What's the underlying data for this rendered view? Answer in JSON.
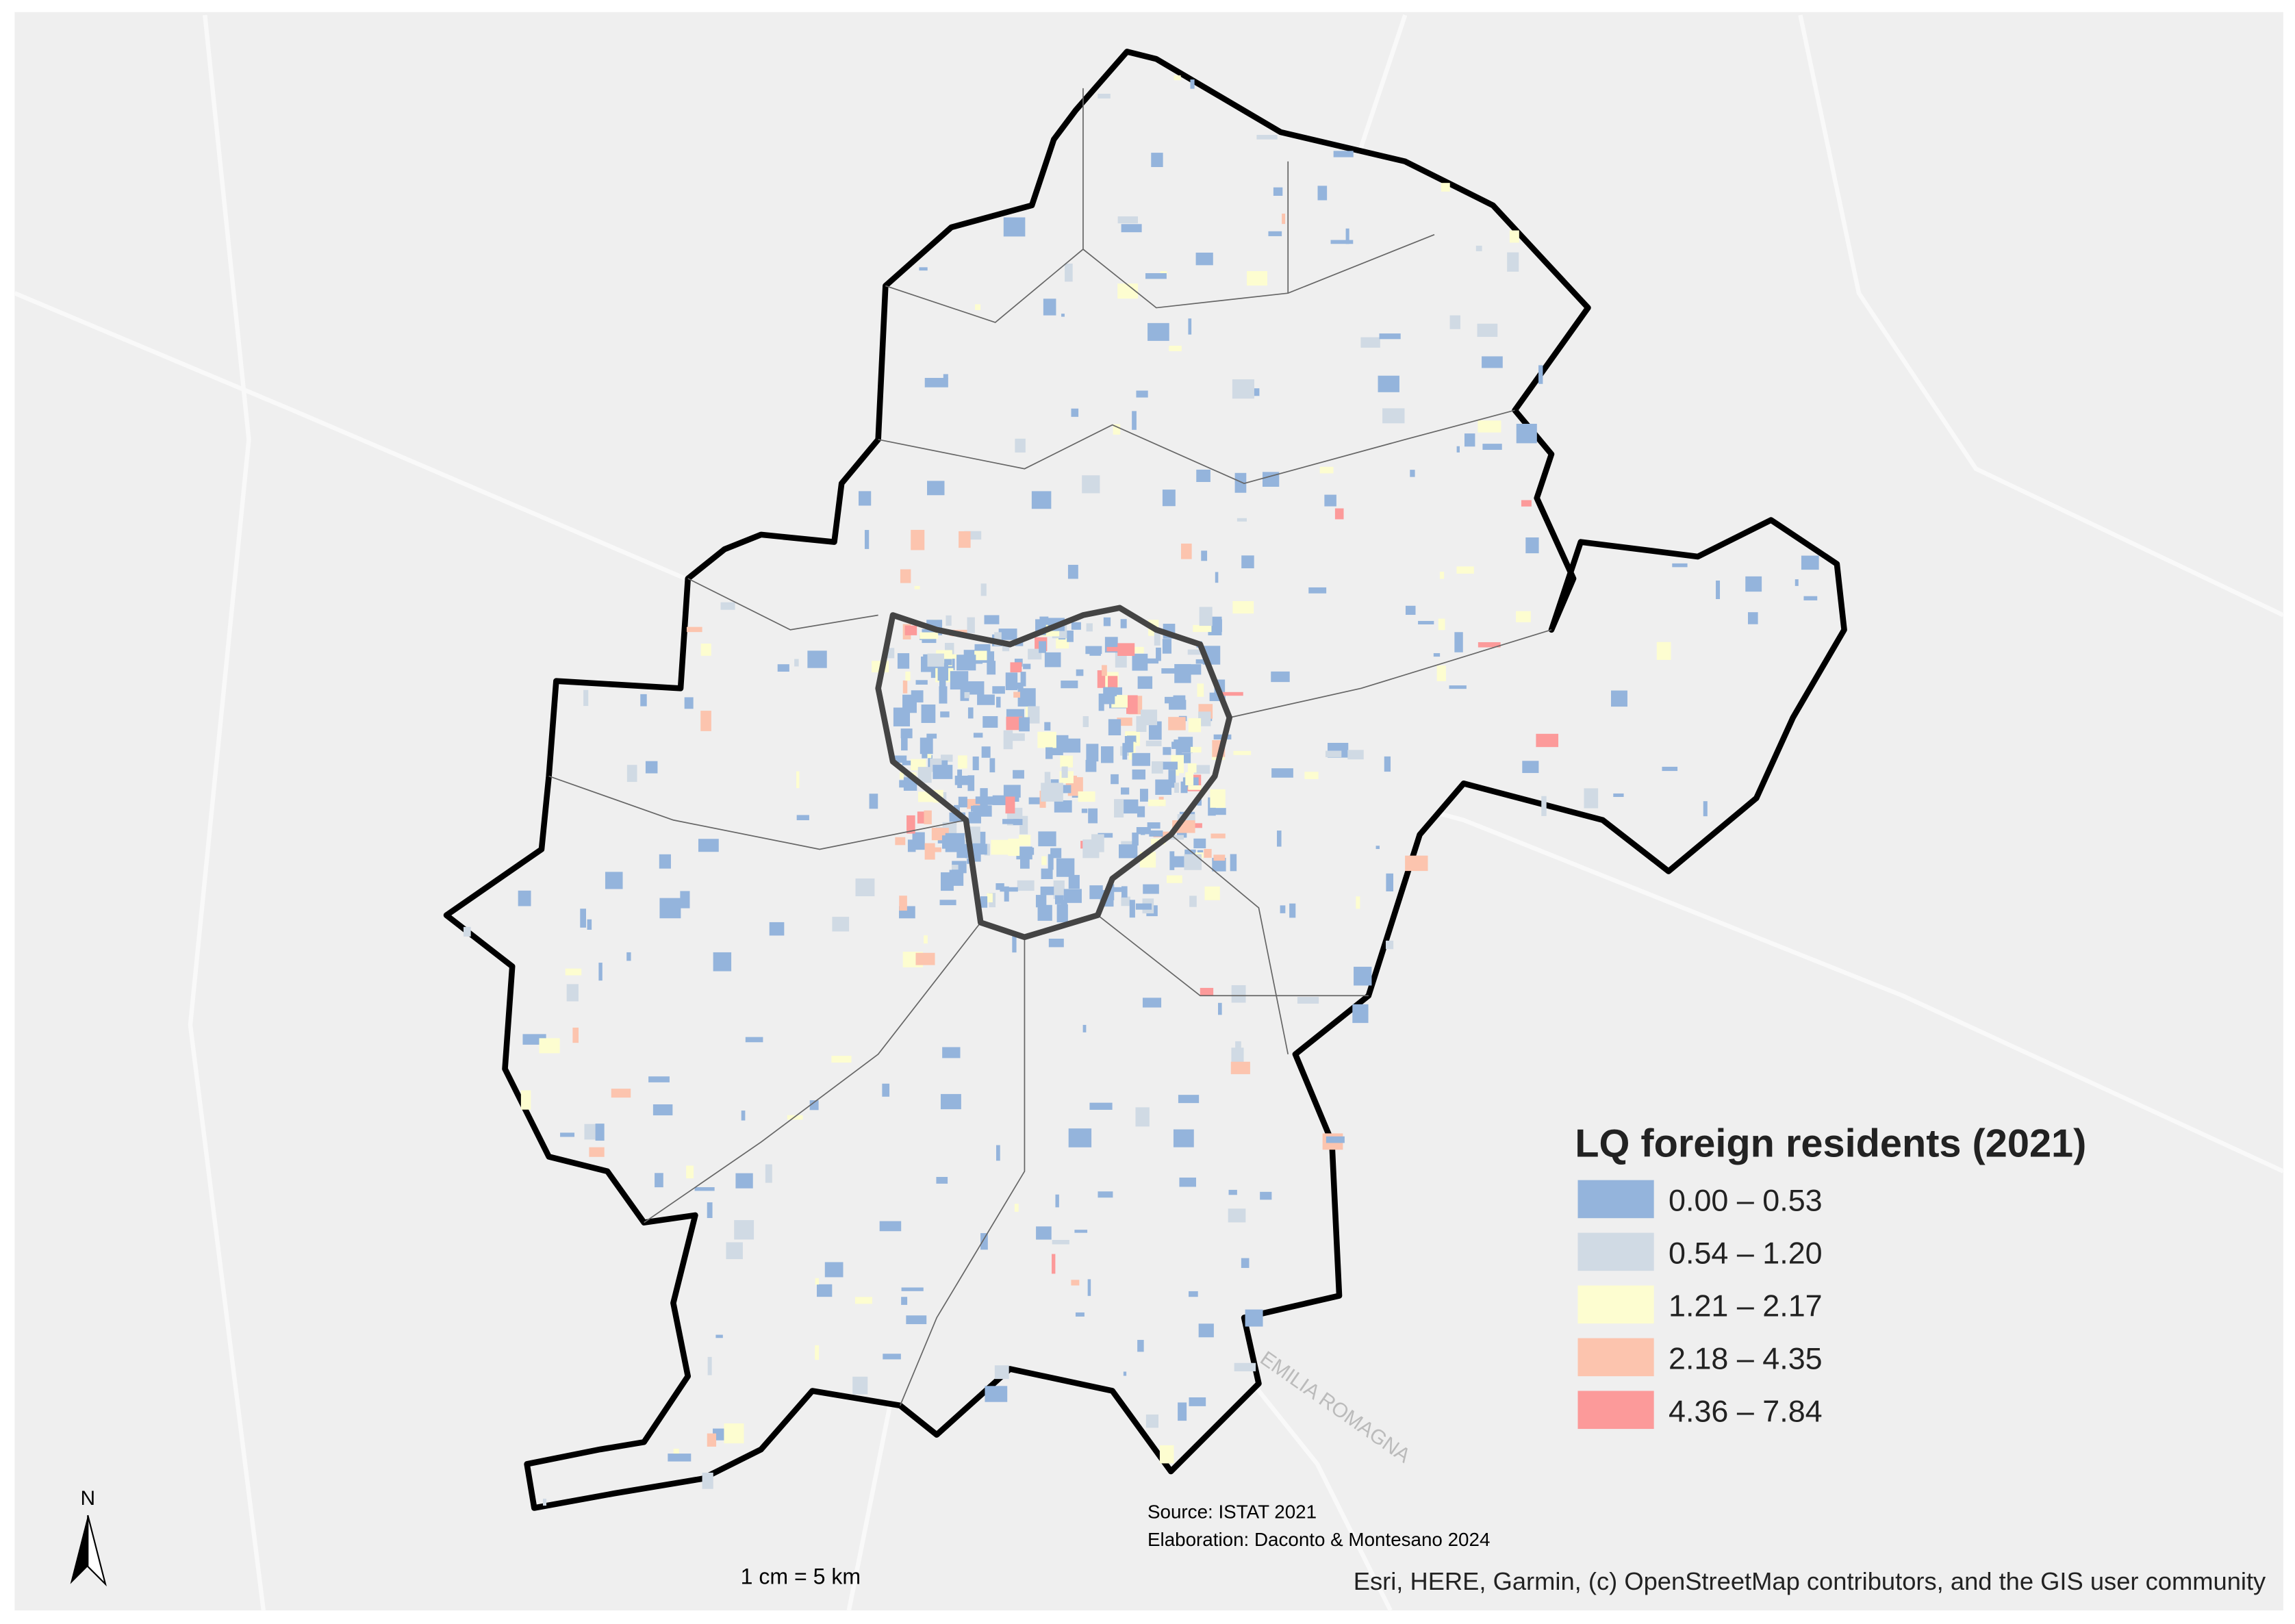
{
  "map": {
    "legend": {
      "title": "LQ foreign residents (2021)",
      "items": [
        {
          "label": "0.00 – 0.53",
          "color": "#94b4dc"
        },
        {
          "label": "0.54 – 1.20",
          "color": "#d0dae4"
        },
        {
          "label": "1.21 – 2.17",
          "color": "#fdfdd0"
        },
        {
          "label": "2.18 – 4.35",
          "color": "#fcc4ae"
        },
        {
          "label": "4.36 – 7.84",
          "color": "#fc9a9a"
        }
      ]
    },
    "north": "N",
    "scale": "1 cm = 5 km",
    "source": [
      "Source: ISTAT 2021",
      "Elaboration: Daconto & Montesano 2024"
    ],
    "attribution": "Esri, HERE, Garmin, (c) OpenStreetMap contributors, and the GIS user community",
    "place_label": "EMILIA ROMAGNA"
  }
}
